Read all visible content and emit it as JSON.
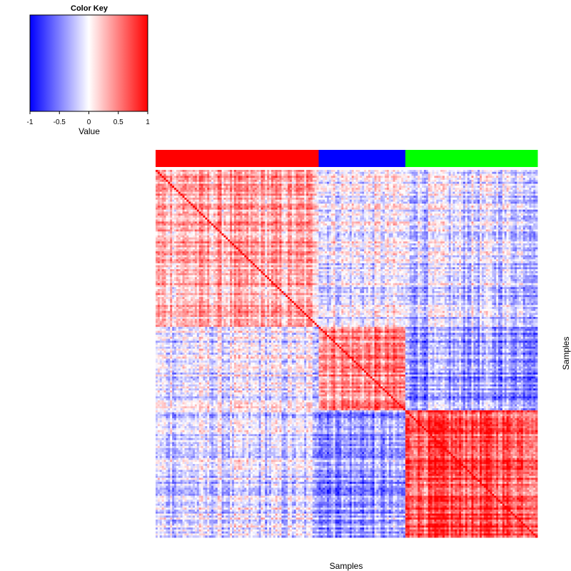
{
  "chart_data": {
    "type": "heatmap",
    "color_key": {
      "title": "Color Key",
      "label": "Value",
      "ticks": [
        "-1",
        "-0.5",
        "0",
        "0.5",
        "1"
      ],
      "tick_values": [
        -1,
        -0.5,
        0,
        0.5,
        1
      ],
      "range": [
        -1,
        1
      ],
      "colors": [
        "#0000ff",
        "#ffffff",
        "#ff0000"
      ]
    },
    "xlabel": "Samples",
    "ylabel": "Samples",
    "n_samples": 185,
    "groups": [
      {
        "color": "#ff0000",
        "count": 79
      },
      {
        "color": "#0000ff",
        "count": 42
      },
      {
        "color": "#00ff00",
        "count": 64
      }
    ],
    "block_means": [
      [
        0.3,
        -0.05,
        -0.15
      ],
      [
        -0.1,
        0.45,
        -0.4
      ],
      [
        -0.15,
        -0.4,
        0.7
      ]
    ],
    "diagonal_value": 1
  }
}
